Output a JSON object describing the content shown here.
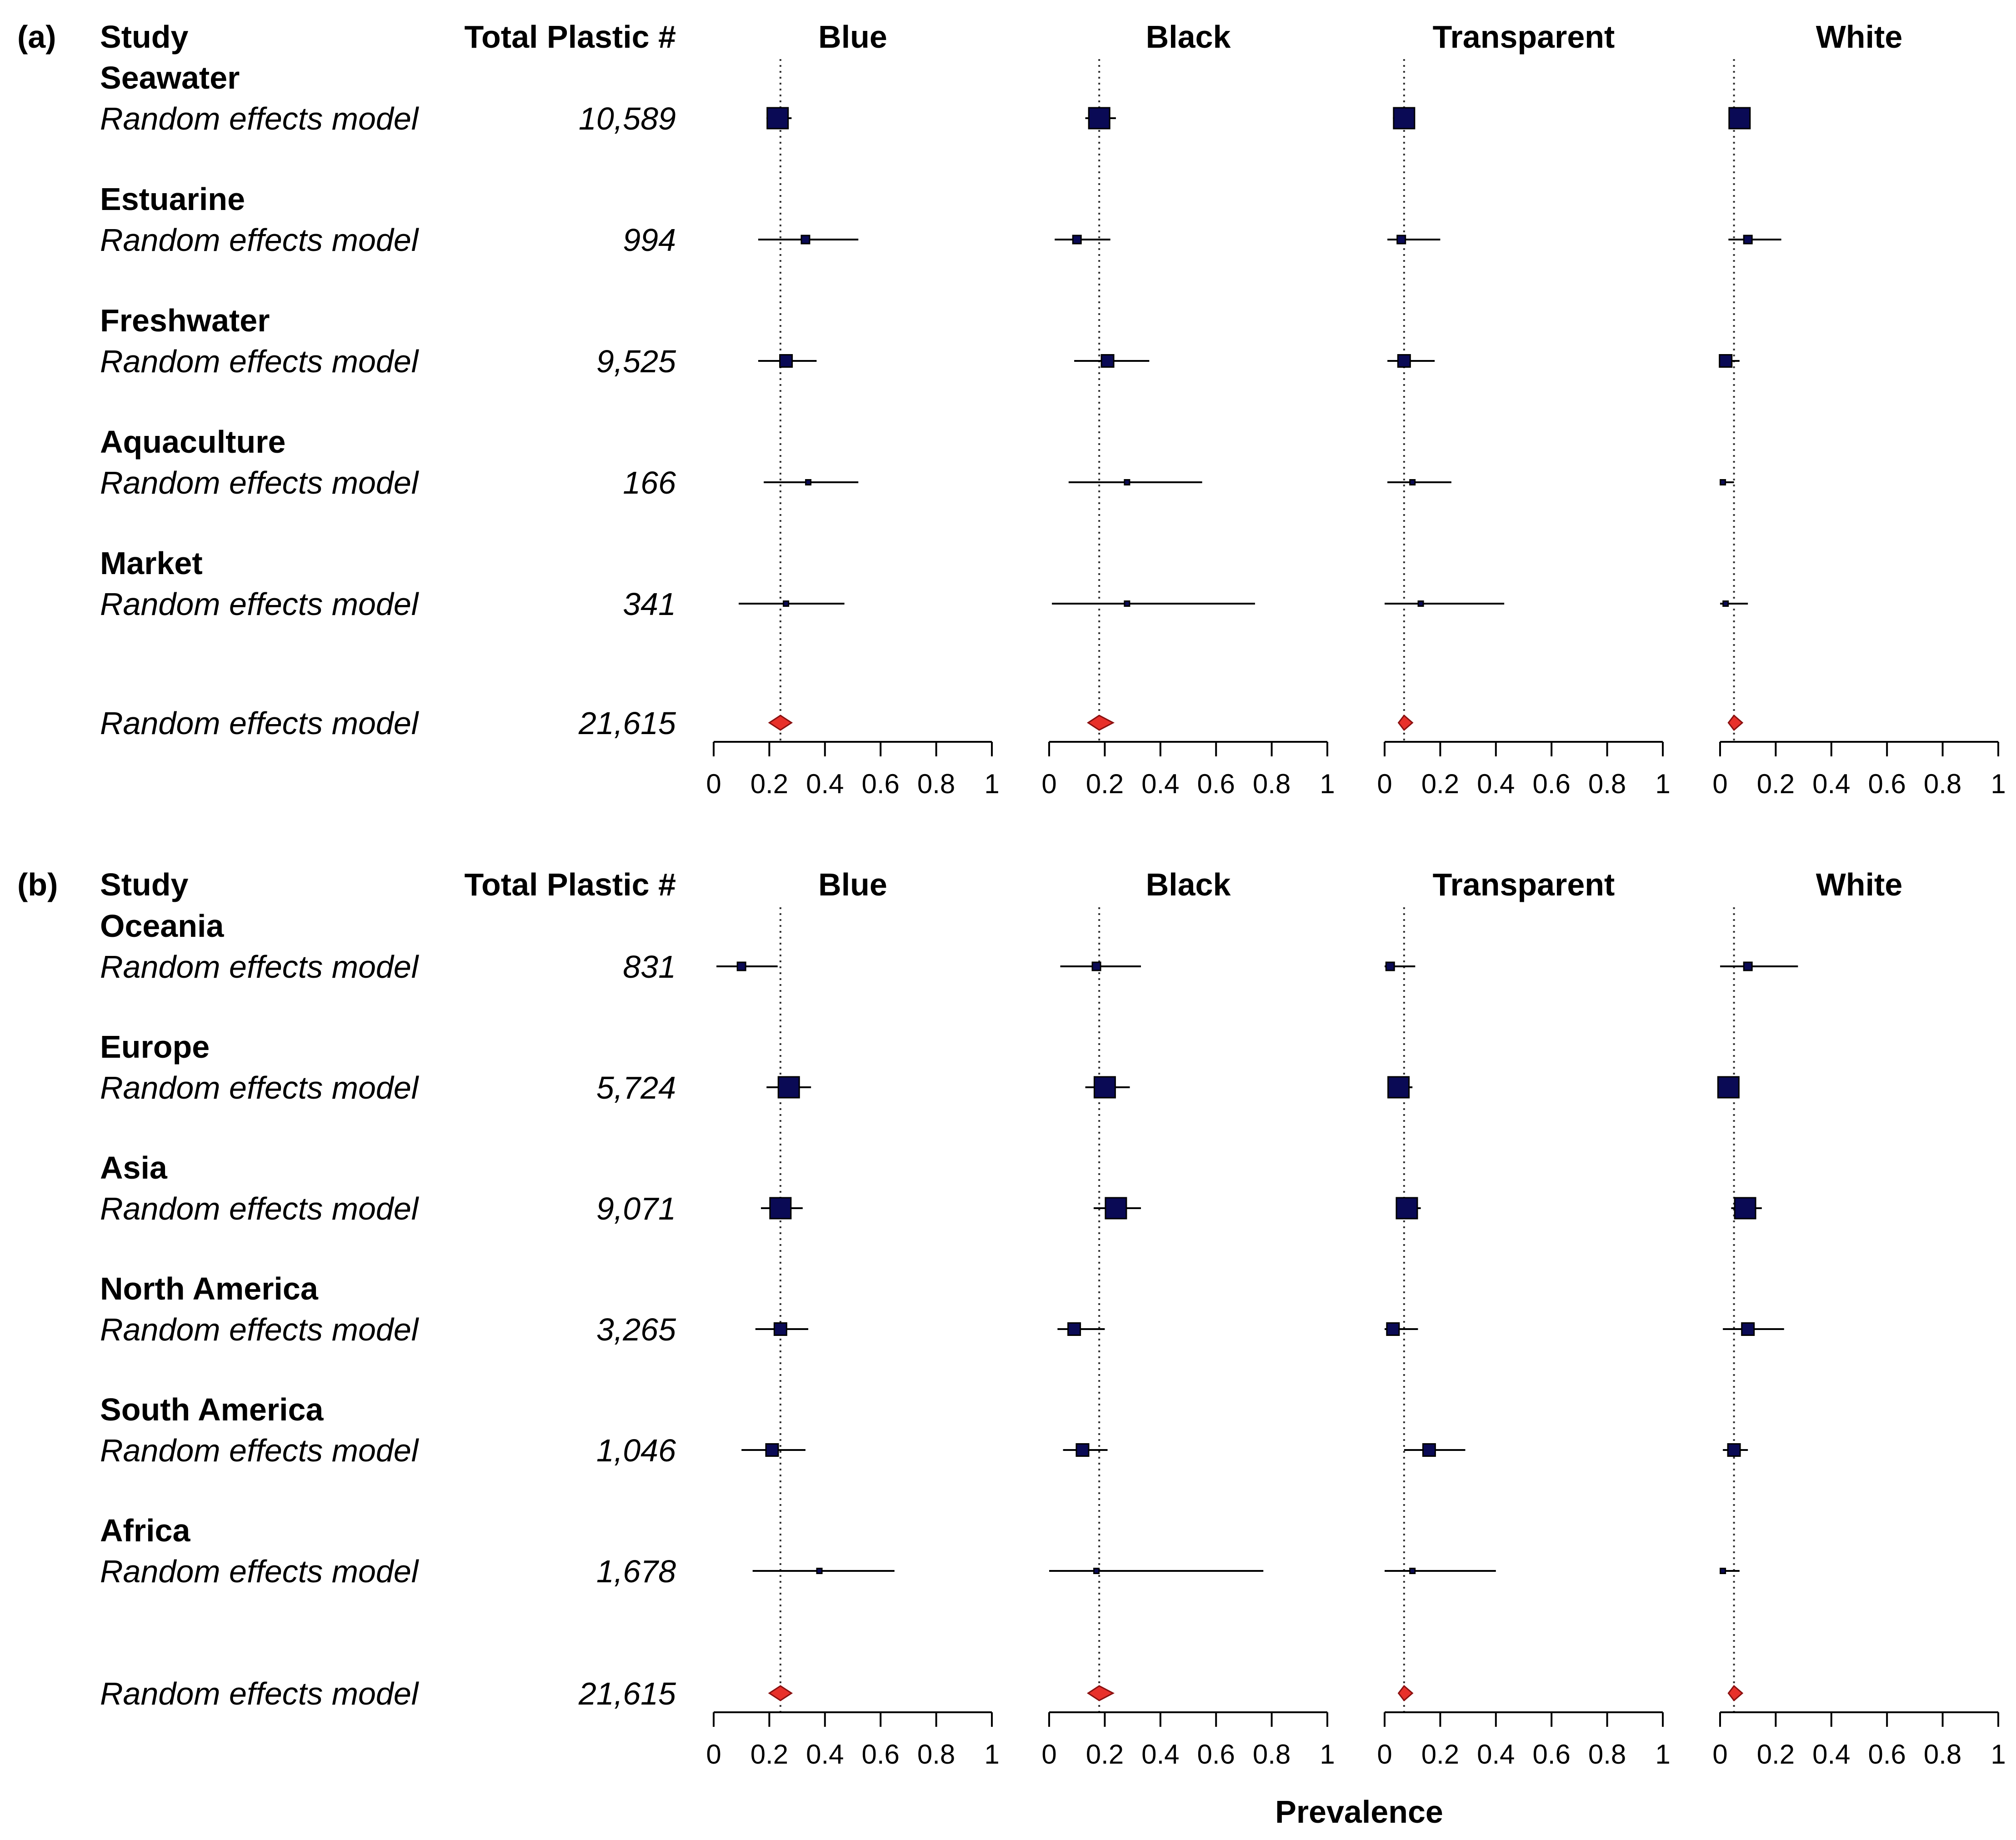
{
  "colors": {
    "square_fill": "#0a0a55",
    "square_stroke": "#000000",
    "diamond_fill": "#e8302a",
    "diamond_stroke": "#8a1010",
    "line": "#000000"
  },
  "chart_data": [
    {
      "type": "forest",
      "panel_label": "(a)",
      "header_study": "Study",
      "header_total": "Total Plastic #",
      "columns": [
        "Blue",
        "Black",
        "Transparent",
        "White"
      ],
      "xlim": [
        0,
        1
      ],
      "xticks": [
        0,
        0.2,
        0.4,
        0.6,
        0.8,
        1
      ],
      "tick_labels": [
        "0",
        "0.2",
        "0.4",
        "0.6",
        "0.8",
        "1"
      ],
      "reference_line": {
        "Blue": 0.24,
        "Black": 0.18,
        "Transparent": 0.07,
        "White": 0.05
      },
      "groups": [
        {
          "name": "Seawater",
          "model_label": "Random effects model",
          "total": "10,589",
          "estimates": {
            "Blue": {
              "est": 0.23,
              "lo": 0.19,
              "hi": 0.28,
              "weight": "large"
            },
            "Black": {
              "est": 0.18,
              "lo": 0.13,
              "hi": 0.24,
              "weight": "large"
            },
            "Transparent": {
              "est": 0.07,
              "lo": 0.03,
              "hi": 0.1,
              "weight": "large"
            },
            "White": {
              "est": 0.07,
              "lo": 0.05,
              "hi": 0.09,
              "weight": "large"
            }
          }
        },
        {
          "name": "Estuarine",
          "model_label": "Random effects model",
          "total": "994",
          "estimates": {
            "Blue": {
              "est": 0.33,
              "lo": 0.16,
              "hi": 0.52,
              "weight": "small"
            },
            "Black": {
              "est": 0.1,
              "lo": 0.02,
              "hi": 0.22,
              "weight": "small"
            },
            "Transparent": {
              "est": 0.06,
              "lo": 0.01,
              "hi": 0.2,
              "weight": "small"
            },
            "White": {
              "est": 0.1,
              "lo": 0.03,
              "hi": 0.22,
              "weight": "small"
            }
          }
        },
        {
          "name": "Freshwater",
          "model_label": "Random effects model",
          "total": "9,525",
          "estimates": {
            "Blue": {
              "est": 0.26,
              "lo": 0.16,
              "hi": 0.37,
              "weight": "medium"
            },
            "Black": {
              "est": 0.21,
              "lo": 0.09,
              "hi": 0.36,
              "weight": "medium"
            },
            "Transparent": {
              "est": 0.07,
              "lo": 0.01,
              "hi": 0.18,
              "weight": "medium"
            },
            "White": {
              "est": 0.02,
              "lo": 0.0,
              "hi": 0.07,
              "weight": "medium"
            }
          }
        },
        {
          "name": "Aquaculture",
          "model_label": "Random effects model",
          "total": "166",
          "estimates": {
            "Blue": {
              "est": 0.34,
              "lo": 0.18,
              "hi": 0.52,
              "weight": "tiny"
            },
            "Black": {
              "est": 0.28,
              "lo": 0.07,
              "hi": 0.55,
              "weight": "tiny"
            },
            "Transparent": {
              "est": 0.1,
              "lo": 0.01,
              "hi": 0.24,
              "weight": "tiny"
            },
            "White": {
              "est": 0.01,
              "lo": 0.0,
              "hi": 0.05,
              "weight": "tiny"
            }
          }
        },
        {
          "name": "Market",
          "model_label": "Random effects model",
          "total": "341",
          "estimates": {
            "Blue": {
              "est": 0.26,
              "lo": 0.09,
              "hi": 0.47,
              "weight": "tiny"
            },
            "Black": {
              "est": 0.28,
              "lo": 0.01,
              "hi": 0.74,
              "weight": "tiny"
            },
            "Transparent": {
              "est": 0.13,
              "lo": 0.0,
              "hi": 0.43,
              "weight": "tiny"
            },
            "White": {
              "est": 0.02,
              "lo": 0.0,
              "hi": 0.1,
              "weight": "tiny"
            }
          }
        }
      ],
      "overall": {
        "model_label": "Random effects model",
        "total": "21,615",
        "estimates": {
          "Blue": {
            "est": 0.24,
            "lo": 0.2,
            "hi": 0.28
          },
          "Black": {
            "est": 0.18,
            "lo": 0.14,
            "hi": 0.23
          },
          "Transparent": {
            "est": 0.07,
            "lo": 0.05,
            "hi": 0.1
          },
          "White": {
            "est": 0.05,
            "lo": 0.03,
            "hi": 0.08
          }
        }
      }
    },
    {
      "type": "forest",
      "panel_label": "(b)",
      "header_study": "Study",
      "header_total": "Total Plastic #",
      "columns": [
        "Blue",
        "Black",
        "Transparent",
        "White"
      ],
      "xlim": [
        0,
        1
      ],
      "xticks": [
        0,
        0.2,
        0.4,
        0.6,
        0.8,
        1
      ],
      "tick_labels": [
        "0",
        "0.2",
        "0.4",
        "0.6",
        "0.8",
        "1"
      ],
      "reference_line": {
        "Blue": 0.24,
        "Black": 0.18,
        "Transparent": 0.07,
        "White": 0.05
      },
      "groups": [
        {
          "name": "Oceania",
          "model_label": "Random effects model",
          "total": "831",
          "estimates": {
            "Blue": {
              "est": 0.1,
              "lo": 0.01,
              "hi": 0.23,
              "weight": "small"
            },
            "Black": {
              "est": 0.17,
              "lo": 0.04,
              "hi": 0.33,
              "weight": "small"
            },
            "Transparent": {
              "est": 0.02,
              "lo": 0.0,
              "hi": 0.11,
              "weight": "small"
            },
            "White": {
              "est": 0.1,
              "lo": 0.0,
              "hi": 0.28,
              "weight": "small"
            }
          }
        },
        {
          "name": "Europe",
          "model_label": "Random effects model",
          "total": "5,724",
          "estimates": {
            "Blue": {
              "est": 0.27,
              "lo": 0.19,
              "hi": 0.35,
              "weight": "large"
            },
            "Black": {
              "est": 0.2,
              "lo": 0.13,
              "hi": 0.29,
              "weight": "large"
            },
            "Transparent": {
              "est": 0.05,
              "lo": 0.02,
              "hi": 0.1,
              "weight": "large"
            },
            "White": {
              "est": 0.03,
              "lo": 0.01,
              "hi": 0.06,
              "weight": "large"
            }
          }
        },
        {
          "name": "Asia",
          "model_label": "Random effects model",
          "total": "9,071",
          "estimates": {
            "Blue": {
              "est": 0.24,
              "lo": 0.17,
              "hi": 0.32,
              "weight": "large"
            },
            "Black": {
              "est": 0.24,
              "lo": 0.16,
              "hi": 0.33,
              "weight": "large"
            },
            "Transparent": {
              "est": 0.08,
              "lo": 0.04,
              "hi": 0.13,
              "weight": "large"
            },
            "White": {
              "est": 0.09,
              "lo": 0.04,
              "hi": 0.15,
              "weight": "large"
            }
          }
        },
        {
          "name": "North America",
          "model_label": "Random effects model",
          "total": "3,265",
          "estimates": {
            "Blue": {
              "est": 0.24,
              "lo": 0.15,
              "hi": 0.34,
              "weight": "medium"
            },
            "Black": {
              "est": 0.09,
              "lo": 0.03,
              "hi": 0.2,
              "weight": "medium"
            },
            "Transparent": {
              "est": 0.03,
              "lo": 0.0,
              "hi": 0.12,
              "weight": "medium"
            },
            "White": {
              "est": 0.1,
              "lo": 0.01,
              "hi": 0.23,
              "weight": "medium"
            }
          }
        },
        {
          "name": "South America",
          "model_label": "Random effects model",
          "total": "1,046",
          "estimates": {
            "Blue": {
              "est": 0.21,
              "lo": 0.1,
              "hi": 0.33,
              "weight": "medium"
            },
            "Black": {
              "est": 0.12,
              "lo": 0.05,
              "hi": 0.21,
              "weight": "medium"
            },
            "Transparent": {
              "est": 0.16,
              "lo": 0.07,
              "hi": 0.29,
              "weight": "medium"
            },
            "White": {
              "est": 0.05,
              "lo": 0.01,
              "hi": 0.1,
              "weight": "medium"
            }
          }
        },
        {
          "name": "Africa",
          "model_label": "Random effects model",
          "total": "1,678",
          "estimates": {
            "Blue": {
              "est": 0.38,
              "lo": 0.14,
              "hi": 0.65,
              "weight": "tiny"
            },
            "Black": {
              "est": 0.17,
              "lo": 0.0,
              "hi": 0.77,
              "weight": "tiny"
            },
            "Transparent": {
              "est": 0.1,
              "lo": 0.0,
              "hi": 0.4,
              "weight": "tiny"
            },
            "White": {
              "est": 0.01,
              "lo": 0.0,
              "hi": 0.07,
              "weight": "tiny"
            }
          }
        }
      ],
      "overall": {
        "model_label": "Random effects model",
        "total": "21,615",
        "estimates": {
          "Blue": {
            "est": 0.24,
            "lo": 0.2,
            "hi": 0.28
          },
          "Black": {
            "est": 0.18,
            "lo": 0.14,
            "hi": 0.23
          },
          "Transparent": {
            "est": 0.07,
            "lo": 0.05,
            "hi": 0.1
          },
          "White": {
            "est": 0.05,
            "lo": 0.03,
            "hi": 0.08
          }
        }
      }
    }
  ],
  "xlabel": "Prevalence"
}
